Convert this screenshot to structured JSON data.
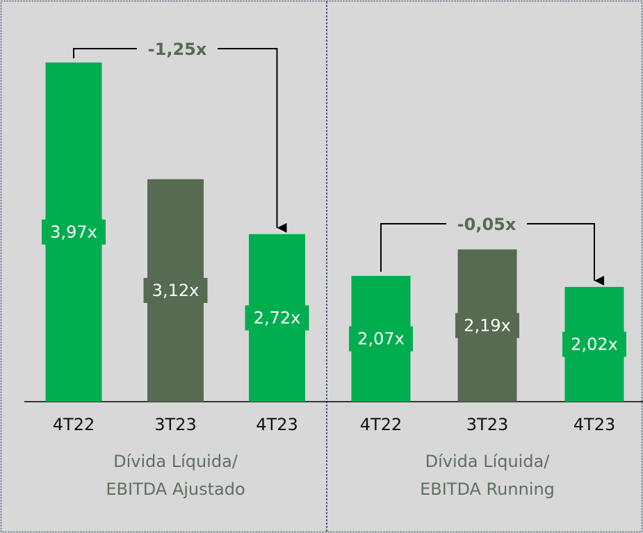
{
  "chart_data": [
    {
      "type": "bar",
      "categories": [
        "4T22",
        "3T23",
        "4T23"
      ],
      "values": [
        3.97,
        3.12,
        2.72
      ],
      "value_labels": [
        "3,97x",
        "3,12x",
        "2,72x"
      ],
      "colors": [
        "#00ad4f",
        "#566b52",
        "#00ad4f"
      ],
      "ylim": [
        1.5,
        4.0
      ],
      "xlabel": [
        "Dívida Líquida/",
        "EBITDA Ajustado"
      ],
      "annotation": "-1,25x"
    },
    {
      "type": "bar",
      "categories": [
        "4T22",
        "3T23",
        "4T23"
      ],
      "values": [
        2.07,
        2.19,
        2.02
      ],
      "value_labels": [
        "2,07x",
        "2,19x",
        "2,02x"
      ],
      "colors": [
        "#00ad4f",
        "#566b52",
        "#00ad4f"
      ],
      "ylim": [
        1.5,
        2.3
      ],
      "xlabel": [
        "Dívida Líquida/",
        "EBITDA Running"
      ],
      "annotation": "-0,05x"
    }
  ]
}
